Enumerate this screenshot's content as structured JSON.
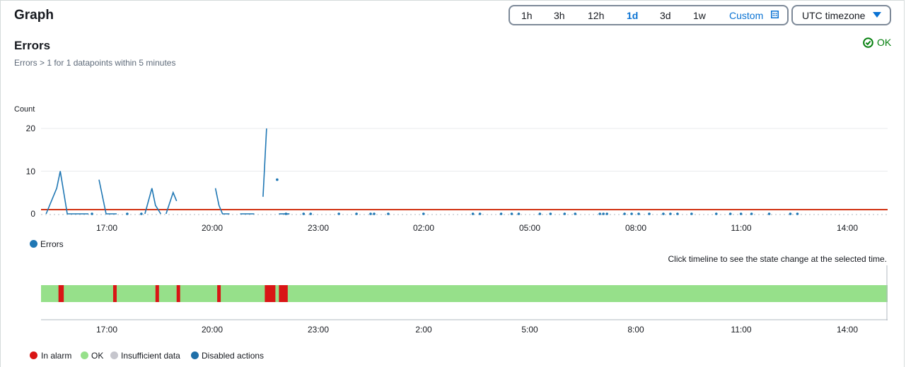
{
  "header": {
    "title": "Graph"
  },
  "range": {
    "options": [
      "1h",
      "3h",
      "12h",
      "1d",
      "3d",
      "1w"
    ],
    "active": "1d",
    "custom_label": "Custom"
  },
  "timezone": {
    "label": "UTC timezone"
  },
  "alarm": {
    "name": "Errors",
    "description": "Errors > 1 for 1 datapoints within 5 minutes",
    "state": "OK"
  },
  "colors": {
    "series": "#1f77b4",
    "threshold": "#d13212",
    "in_alarm": "#d91515",
    "ok": "#96e08a",
    "insufficient": "#c6c6cd",
    "disabled": "#1f6fa8",
    "link": "#0972d3",
    "ok_text": "#037f0c"
  },
  "chart_data": {
    "type": "line",
    "ylabel": "Count",
    "yticks": [
      "20",
      "10",
      "0"
    ],
    "ylim": [
      0,
      20
    ],
    "xticks": [
      "17:00",
      "20:00",
      "23:00",
      "02:00",
      "05:00",
      "08:00",
      "11:00",
      "14:00"
    ],
    "threshold": 1,
    "series": [
      {
        "name": "Errors",
        "segments": [
          [
            [
              15.3,
              0
            ],
            [
              15.6,
              6
            ],
            [
              15.7,
              10
            ],
            [
              15.9,
              0
            ],
            [
              16.0,
              0
            ],
            [
              16.5,
              0
            ]
          ],
          [
            [
              16.8,
              8
            ],
            [
              17.0,
              0
            ],
            [
              17.3,
              0
            ]
          ],
          [
            [
              18.1,
              0
            ],
            [
              18.3,
              6
            ],
            [
              18.4,
              2
            ],
            [
              18.55,
              0
            ]
          ],
          [
            [
              18.7,
              0
            ],
            [
              18.9,
              5
            ],
            [
              19.0,
              3
            ]
          ],
          [
            [
              20.1,
              6
            ],
            [
              20.2,
              2
            ],
            [
              20.3,
              0
            ],
            [
              20.5,
              0
            ]
          ],
          [
            [
              21.45,
              4
            ],
            [
              21.55,
              20
            ]
          ],
          [
            [
              21.9,
              0
            ],
            [
              22.2,
              0
            ]
          ],
          [
            [
              20.8,
              0
            ],
            [
              21.0,
              0
            ],
            [
              21.2,
              0
            ]
          ]
        ],
        "points": [
          [
            21.85,
            8
          ],
          [
            16.6,
            0
          ],
          [
            17.6,
            0
          ],
          [
            18.0,
            0
          ],
          [
            22.1,
            0
          ],
          [
            22.6,
            0
          ],
          [
            22.8,
            0
          ],
          [
            23.6,
            0
          ],
          [
            24.1,
            0
          ],
          [
            24.5,
            0
          ],
          [
            24.6,
            0
          ],
          [
            25.0,
            0
          ],
          [
            26.0,
            0
          ],
          [
            27.4,
            0
          ],
          [
            27.6,
            0
          ],
          [
            28.2,
            0
          ],
          [
            28.5,
            0
          ],
          [
            28.7,
            0
          ],
          [
            29.3,
            0
          ],
          [
            29.6,
            0
          ],
          [
            30.0,
            0
          ],
          [
            30.3,
            0
          ],
          [
            31.0,
            0
          ],
          [
            31.1,
            0
          ],
          [
            31.2,
            0
          ],
          [
            31.7,
            0
          ],
          [
            31.9,
            0
          ],
          [
            32.1,
            0
          ],
          [
            32.4,
            0
          ],
          [
            32.8,
            0
          ],
          [
            33.0,
            0
          ],
          [
            33.2,
            0
          ],
          [
            33.6,
            0
          ],
          [
            34.3,
            0
          ],
          [
            34.7,
            0
          ],
          [
            35.0,
            0
          ],
          [
            35.3,
            0
          ],
          [
            35.8,
            0
          ],
          [
            36.4,
            0
          ],
          [
            36.6,
            0
          ]
        ]
      }
    ],
    "legend": [
      "Errors"
    ]
  },
  "timeline": {
    "hint": "Click timeline to see the state change at the selected time.",
    "xticks": [
      "17:00",
      "20:00",
      "23:00",
      "2:00",
      "5:00",
      "8:00",
      "11:00",
      "14:00"
    ],
    "alarm_periods": [
      [
        15.65,
        15.8
      ],
      [
        17.2,
        17.3
      ],
      [
        18.4,
        18.5
      ],
      [
        19.0,
        19.1
      ],
      [
        20.15,
        20.25
      ],
      [
        21.5,
        21.8
      ],
      [
        21.9,
        22.15
      ]
    ],
    "legend": [
      "In alarm",
      "OK",
      "Insufficient data",
      "Disabled actions"
    ]
  }
}
